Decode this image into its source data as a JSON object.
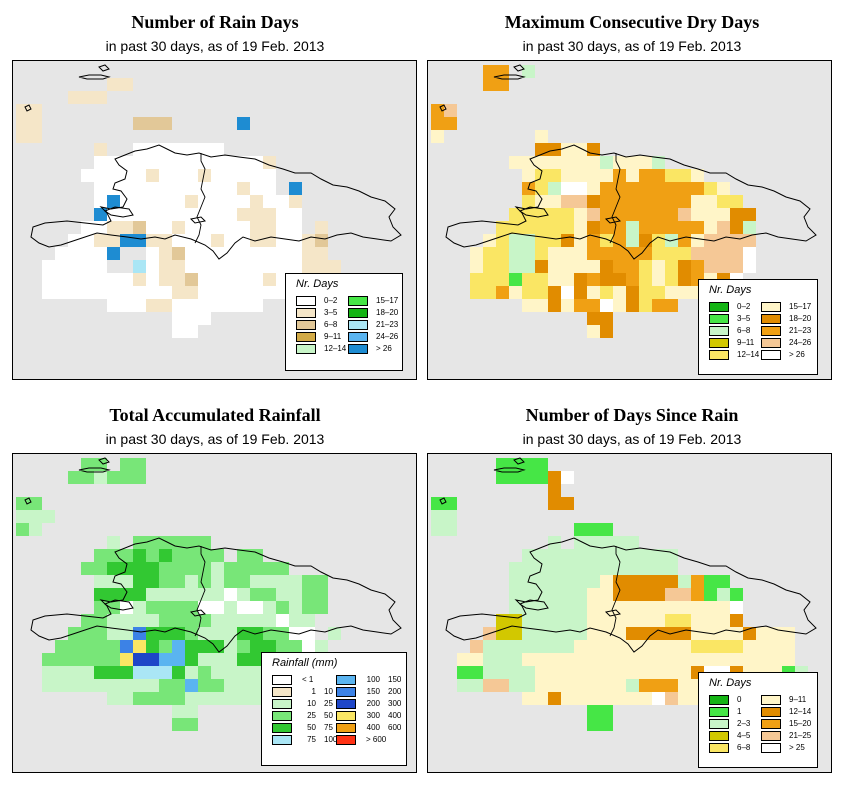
{
  "panels": [
    {
      "id": "rain-days",
      "title": "Number of Rain Days",
      "subtitle": "in past 30 days, as of  19 Feb. 2013",
      "legend": {
        "title": "Nr. Days",
        "two_part_labels": false,
        "items": [
          {
            "label": "0–2",
            "color": "#ffffff"
          },
          {
            "label": "3–5",
            "color": "#f5e6c8"
          },
          {
            "label": "6–8",
            "color": "#e2c898"
          },
          {
            "label": "9–11",
            "color": "#d2aa46"
          },
          {
            "label": "12–14",
            "color": "#c8f5c8"
          },
          {
            "label": "15–17",
            "color": "#46e646"
          },
          {
            "label": "18–20",
            "color": "#14b414"
          },
          {
            "label": "21–23",
            "color": "#aae6f5"
          },
          {
            "label": "24–26",
            "color": "#5ab4f0"
          },
          {
            "label": "> 26",
            "color": "#1e8cd2"
          }
        ]
      },
      "grid": [
        "..........................",
        ".......aa.................",
        "....aaa...................",
        "aa.........,..............",
        "aa.......bbb.....i........",
        "aa........................",
        "......a..0000000..........",
        "......0000000000000a......",
        ".....00000a000a00000......",
        "......00000000000a00.i....",
        "......0i00000a0000a00a....",
        "......i0000000000aaa00....",
        ".....00aab00a00000aa00.a..",
        "....00aaiiaa000a00aa00ab..",
        "...0000ijj0ab000000000aa..",
        "..00000jjg0aa000000000aaa.",
        "..0000000a0aab00000a000aa.",
        "..0000000000aa00000000000.",
        ".......000aa0000000.......",
        "............000...........",
        "............00............"
      ]
    },
    {
      "id": "max-dry-days",
      "title": "Maximum Consecutive Dry Days",
      "subtitle": "in past 30 days, as of  19 Feb. 2013",
      "legend": {
        "title": "Nr. Days",
        "two_part_labels": false,
        "items": [
          {
            "label": "0–2",
            "color": "#14b414"
          },
          {
            "label": "3–5",
            "color": "#46e646"
          },
          {
            "label": "6–8",
            "color": "#c8f5c8"
          },
          {
            "label": "9–11",
            "color": "#d2c800"
          },
          {
            "label": "12–14",
            "color": "#fae664"
          },
          {
            "label": "15–17",
            "color": "#fff5c8"
          },
          {
            "label": "18–20",
            "color": "#e18c00"
          },
          {
            "label": "21–23",
            "color": "#f0a014"
          },
          {
            "label": "24–26",
            "color": "#f5c896"
          },
          {
            "label": "> 26",
            "color": "#ffffff"
          }
        ]
      },
      "grid": [
        "....gg.b..................",
        "....gg....................",
        "..........................",
        "gh........................",
        "gg.......................",
        "e.......e.................",
        "........ffeef.............",
        "......eeeeeeebeeeb........",
        ".......eddeeeegeggdde.....",
        ".......gdbiieggggggggde...",
        ".......deehhfgggggggeedd..",
        "......dddddehggggggheeeff.",
        ".....ddddddefggbgggggehfb.",
        "....edbbddfegdgbfdbgehhhh.",
        "...eddbbdeeegggggdddhhhhi.",
        "...eddbbfeeeefggdedfghhhi.",
        "...dddaddeefgffgdedfgefi..",
        "...ddgeddfifedefddeeeefe..",
        ".......eefeggiefdgg........",
        "............ff............",
        "............ef............"
      ]
    },
    {
      "id": "total-rainfall",
      "title": "Total Accumulated Rainfall",
      "subtitle": "in past 30 days, as of  19 Feb. 2013",
      "legend": {
        "title": "Rainfall (mm)",
        "two_part_labels": true,
        "items": [
          {
            "from": "< 1",
            "to": "",
            "color": "#ffffff"
          },
          {
            "from": "1",
            "to": "10",
            "color": "#f5e6c8"
          },
          {
            "from": "10",
            "to": "25",
            "color": "#c8f5c8"
          },
          {
            "from": "25",
            "to": "50",
            "color": "#78e678"
          },
          {
            "from": "50",
            "to": "75",
            "color": "#32c832"
          },
          {
            "from": "75",
            "to": "100",
            "color": "#aae6f5"
          },
          {
            "from": "100",
            "to": "150",
            "color": "#5ab4f0"
          },
          {
            "from": "150",
            "to": "200",
            "color": "#3c82e6"
          },
          {
            "from": "200",
            "to": "300",
            "color": "#1e46c8"
          },
          {
            "from": "300",
            "to": "400",
            "color": "#fae664"
          },
          {
            "from": "400",
            "to": "600",
            "color": "#f0a014"
          },
          {
            "from": "> 600",
            "to": "",
            "color": "#ff3214"
          }
        ]
      },
      "grid": [
        ".....cc.cc................",
        "....ccbccc................",
        "..........................",
        "cc........................",
        "bbb.......................",
        "cb........................",
        ".......b.cccccc...........",
        "......cccdcdcccc.cc.......",
        ".....ccddddccccbccccc.....",
        "......bbbddccbcbccbbbbcc..",
        "......ddddbbbbbb0bccbbcc..",
        "......cc0bcccc00b00bcbcc..",
        ".....ccbbbbccccbbbbb0bb...",
        "....cccbbgdddcbbbddcc00.b.",
        "...cccccgidcfdddbcddcc0b..",
        "..ccccccihhffdbbbdddbbbb..",
        "..bbbbdddeeedbcbbbb00bb...",
        "..bbbbbbbbbccfccbbbbbbbbb.",
        ".......bbccccbbbbbbbbbb...",
        "............bb............",
        "............cc............"
      ]
    },
    {
      "id": "days-since-rain",
      "title": "Number of Days Since Rain",
      "subtitle": "in past 30 days, as of  19 Feb. 2013",
      "legend": {
        "title": "Nr. Days",
        "two_part_labels": false,
        "items": [
          {
            "label": "0",
            "color": "#14b414"
          },
          {
            "label": "1",
            "color": "#46e646"
          },
          {
            "label": "2–3",
            "color": "#c8f5c8"
          },
          {
            "label": "4–5",
            "color": "#d2c800"
          },
          {
            "label": "6–8",
            "color": "#fae664"
          },
          {
            "label": "9–11",
            "color": "#fff5c8"
          },
          {
            "label": "12–14",
            "color": "#e18c00"
          },
          {
            "label": "15–20",
            "color": "#f0a014"
          },
          {
            "label": "21–25",
            "color": "#f5c896"
          },
          {
            "label": "> 25",
            "color": "#ffffff"
          }
        ]
      },
      "grid": [
        ".....aaaa.................",
        ".....aaaafi...............",
        ".........f................",
        "aa.......ff...............",
        "bb........................",
        "bb.........aaa............",
        ".........b.bbbbb.........",
        ".......bbbbbbbbbbbb.......",
        "......bbbbbbbbbbbbb.......",
        "......bbbbbbbefffffbgaa...",
        "......bbbbbbeeffffhhgaba..",
        "......bbbbbbeeeeeeeeeeei..",
        ".....ccbbbbbeeeeeeddeeef..",
        "....hccbbbbbeeefffffeeeefeee.",
        "...hbbbbbbbeeeeeeeeeddddeeee.",
        "..eebbbeeeeeeeeeeeeeeeeeeeee.",
        "..aabbbbeeeeeeeeeeeefiifeeeab",
        "..bbhhbbeeeeeeebgggeehhheeaa.",
        ".......eefeeeeeeeiheeh......",
        "............aa............",
        "............aa............"
      ]
    }
  ]
}
